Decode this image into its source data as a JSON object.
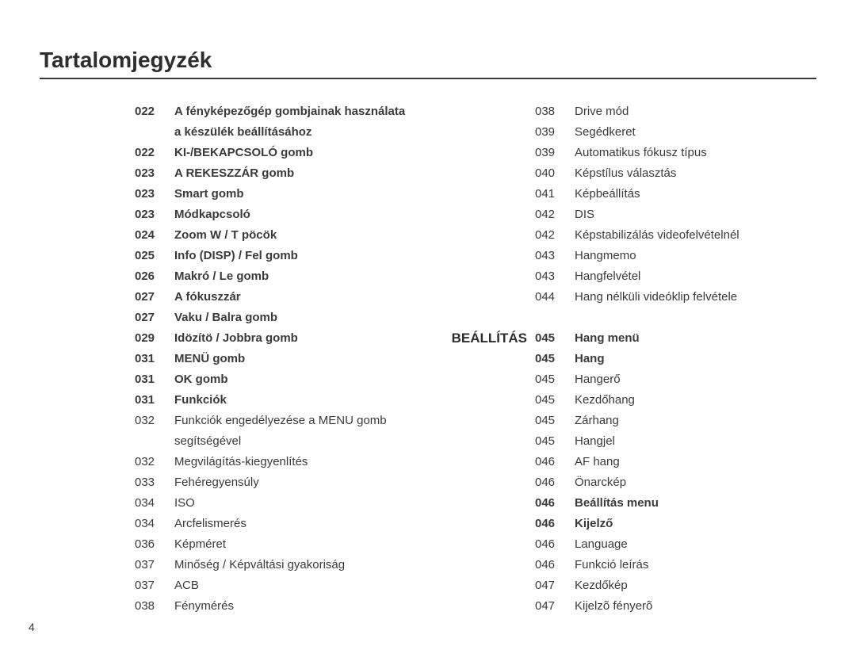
{
  "title": "Tartalomjegyzék",
  "pageNumber": "4",
  "colors": {
    "text": "#3a3a3a",
    "title": "#2d2d2d",
    "rule": "#3a3a3a",
    "background": "#ffffff"
  },
  "typography": {
    "title_fontsize": 28,
    "body_fontsize": 15,
    "section_label_fontsize": 17,
    "line_height": 26
  },
  "left": {
    "section_label": "",
    "entries": [
      {
        "num": "022",
        "label": "A fényképezőgép gombjainak használata",
        "bold": true
      },
      {
        "cont": "a készülék beállításához",
        "bold": true
      },
      {
        "num": "022",
        "label": "KI-/BEKAPCSOLÓ gomb",
        "bold": true
      },
      {
        "num": "023",
        "label": "A REKESZZÁR gomb",
        "bold": true
      },
      {
        "num": "023",
        "label": "Smart gomb",
        "bold": true
      },
      {
        "num": "023",
        "label": "Módkapcsoló",
        "bold": true
      },
      {
        "num": "024",
        "label": "Zoom W / T pöcök",
        "bold": true
      },
      {
        "num": "025",
        "label": "Info (DISP) / Fel gomb",
        "bold": true
      },
      {
        "num": "026",
        "label": "Makró / Le gomb",
        "bold": true
      },
      {
        "num": "027",
        "label": "A fókuszzár",
        "bold": true
      },
      {
        "num": "027",
        "label": "Vaku / Balra gomb",
        "bold": true
      },
      {
        "num": "029",
        "label": "Idözítö / Jobbra gomb",
        "bold": true
      },
      {
        "num": "031",
        "label": "MENÜ gomb",
        "bold": true
      },
      {
        "num": "031",
        "label": "OK gomb",
        "bold": true
      },
      {
        "num": "031",
        "label": "Funkciók",
        "bold": true
      },
      {
        "num": "032",
        "label": "Funkciók engedélyezése a MENU gomb",
        "bold": false
      },
      {
        "cont": "segítségével",
        "bold": false
      },
      {
        "num": "032",
        "label": "Megvilágítás-kiegyenlítés",
        "bold": false
      },
      {
        "num": "033",
        "label": "Fehéregyensúly",
        "bold": false
      },
      {
        "num": "034",
        "label": "ISO",
        "bold": false
      },
      {
        "num": "034",
        "label": "Arcfelismerés",
        "bold": false
      },
      {
        "num": "036",
        "label": "Képméret",
        "bold": false
      },
      {
        "num": "037",
        "label": "Minőség / Képváltási gyakoriság",
        "bold": false
      },
      {
        "num": "037",
        "label": "ACB",
        "bold": false
      },
      {
        "num": "038",
        "label": "Fénymérés",
        "bold": false
      }
    ]
  },
  "right": {
    "section_label": "BEÁLLÍTÁS",
    "section_label_offset_rows": 11,
    "entries": [
      {
        "num": "038",
        "label": "Drive mód",
        "bold": false
      },
      {
        "num": "039",
        "label": "Segédkeret",
        "bold": false
      },
      {
        "num": "039",
        "label": "Automatikus fókusz típus",
        "bold": false
      },
      {
        "num": "040",
        "label": "Képstílus választás",
        "bold": false
      },
      {
        "num": "041",
        "label": "Képbeállítás",
        "bold": false
      },
      {
        "num": "042",
        "label": "DIS",
        "bold": false
      },
      {
        "num": "042",
        "label": "Képstabilizálás videofelvételnél",
        "bold": false
      },
      {
        "num": "043",
        "label": "Hangmemo",
        "bold": false
      },
      {
        "num": "043",
        "label": "Hangfelvétel",
        "bold": false
      },
      {
        "num": "044",
        "label": "Hang nélküli videóklip felvétele",
        "bold": false
      },
      {
        "spacer": true
      },
      {
        "num": "045",
        "label": "Hang menü",
        "bold": true,
        "section_break": true
      },
      {
        "num": "045",
        "label": "Hang",
        "bold": true
      },
      {
        "num": "045",
        "label": "Hangerő",
        "bold": false
      },
      {
        "num": "045",
        "label": "Kezdőhang",
        "bold": false
      },
      {
        "num": "045",
        "label": "Zárhang",
        "bold": false
      },
      {
        "num": "045",
        "label": "Hangjel",
        "bold": false
      },
      {
        "num": "046",
        "label": "AF hang",
        "bold": false
      },
      {
        "num": "046",
        "label": "Önarckép",
        "bold": false
      },
      {
        "num": "046",
        "label": "Beállítás menu",
        "bold": true
      },
      {
        "num": "046",
        "label": "Kijelző",
        "bold": true
      },
      {
        "num": "046",
        "label": "Language",
        "bold": false
      },
      {
        "num": "046",
        "label": "Funkció leírás",
        "bold": false
      },
      {
        "num": "047",
        "label": "Kezdőkép",
        "bold": false
      },
      {
        "num": "047",
        "label": "Kijelzõ fényerõ",
        "bold": false
      }
    ]
  }
}
